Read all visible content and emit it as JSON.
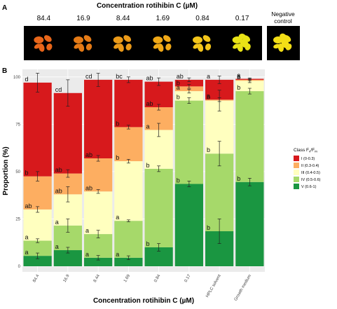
{
  "panel_a": {
    "letter": "A",
    "title": "Concentration rotihibin C (µM)",
    "concentrations": [
      "84.4",
      "16.9",
      "8.44",
      "1.69",
      "0.84",
      "0.17"
    ],
    "negative_control": [
      "Negative",
      "control"
    ],
    "tile_colors": [
      "#e8661a",
      "#e47a16",
      "#eb9a19",
      "#f0a817",
      "#f3c51a",
      "#e9e316"
    ],
    "neg_color": "#f3de16"
  },
  "panel_b": {
    "letter": "B"
  },
  "colors": {
    "I": "#d7191c",
    "II": "#fdae61",
    "III": "#ffffbf",
    "IV": "#a6d96a",
    "V": "#1a9641"
  },
  "chart_data": {
    "type": "bar",
    "stacked": true,
    "categories": [
      "84.4",
      "16.9",
      "8.44",
      "1.69",
      "0.84",
      "0.17",
      "HPLC solvent",
      "Growth medium"
    ],
    "ylabel": "Proportion (%)",
    "xlabel": "Concentration rotihibin C (µM)",
    "ylim": [
      0,
      104
    ],
    "yticks": [
      0,
      25,
      50,
      75,
      100
    ],
    "grid": true,
    "legend_title": "Class Fv/Fm",
    "legend_position": "right",
    "series": [
      {
        "name": "V (0.6-1)",
        "values": [
          5.5,
          8.5,
          4.5,
          4.5,
          10,
          43.5,
          18.5,
          44.5
        ],
        "err": [
          1.5,
          1.5,
          1.2,
          1,
          2,
          1.5,
          6.5,
          2
        ],
        "letters": [
          "a",
          "a",
          "a",
          "a",
          "b",
          "b",
          "b",
          "b"
        ]
      },
      {
        "name": "IV (0.5-0.6)",
        "values": [
          8,
          13,
          12.5,
          19.5,
          41.5,
          44,
          41,
          48
        ],
        "err": [
          1,
          3.5,
          2,
          0.5,
          1.5,
          1.5,
          6.5,
          1.5
        ],
        "letters": [
          "a",
          "a",
          "a",
          "a",
          "b",
          "b",
          "b",
          "b"
        ]
      },
      {
        "name": "III (0.4-0.5)",
        "values": [
          16.5,
          16.5,
          22.5,
          31.5,
          20.5,
          5,
          28,
          5.5
        ],
        "err": [
          1.5,
          4,
          1,
          1,
          3.5,
          1,
          5.5,
          1
        ],
        "letters": [
          "ab",
          "ab",
          "ab",
          "b",
          "a",
          "a",
          "b",
          "b"
        ]
      },
      {
        "name": "II (0.3-0.4)",
        "values": [
          17.5,
          11,
          17.5,
          18,
          12,
          2.5,
          0.5,
          0.5
        ],
        "err": [
          2.5,
          2,
          1.5,
          1,
          1.5,
          1,
          1,
          0.5
        ],
        "letters": [
          "b",
          "ab",
          "ab",
          "b",
          "ab",
          "b",
          "a",
          "a"
        ]
      },
      {
        "name": "I (0-0.3)",
        "values": [
          49.5,
          42.5,
          41.5,
          25,
          13.5,
          3.5,
          10.5,
          0.5
        ],
        "err": [
          5,
          7,
          3.5,
          1.5,
          2,
          1,
          2,
          0.5
        ],
        "letters": [
          "d",
          "cd",
          "cd",
          "bc",
          "ab",
          "ab",
          "a",
          "a"
        ]
      }
    ]
  }
}
